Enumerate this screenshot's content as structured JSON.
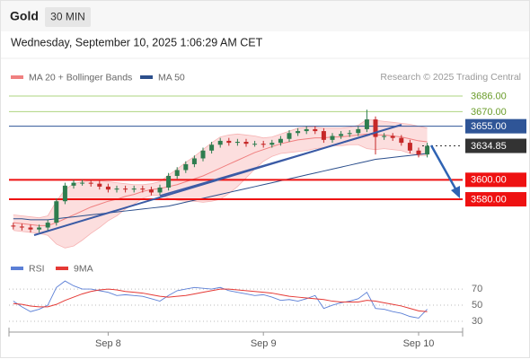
{
  "chart_data": {
    "type": "candlestick",
    "title": "Gold",
    "timeframe": "30 MIN",
    "subtitle": "Wednesday, September 10, 2025 1:06:29 AM CET",
    "source": "Research © 2025 Trading Central",
    "categories": [
      null,
      null,
      null,
      null,
      null,
      null,
      null,
      null,
      null,
      null,
      null,
      "Sep 8",
      null,
      null,
      null,
      null,
      null,
      null,
      null,
      null,
      null,
      null,
      null,
      null,
      null,
      null,
      null,
      null,
      null,
      "Sep 9",
      null,
      null,
      null,
      null,
      null,
      null,
      null,
      null,
      null,
      null,
      null,
      null,
      null,
      null,
      null,
      null,
      null,
      "Sep 10",
      null
    ],
    "open": [
      3553,
      3552,
      3551,
      3549,
      3551,
      3556,
      3578,
      3594,
      3597,
      3597,
      3596,
      3593,
      3590,
      3591,
      3590,
      3591,
      3590,
      3587,
      3592,
      3604,
      3610,
      3616,
      3622,
      3630,
      3636,
      3640,
      3638,
      3639,
      3637,
      3637,
      3636,
      3638,
      3642,
      3648,
      3650,
      3652,
      3650,
      3641,
      3645,
      3647,
      3648,
      3652,
      3662,
      3644,
      3645,
      3643,
      3638,
      3630,
      3626
    ],
    "high": [
      3556,
      3555,
      3554,
      3554,
      3559,
      3581,
      3597,
      3600,
      3600,
      3600,
      3599,
      3596,
      3594,
      3594,
      3594,
      3594,
      3593,
      3595,
      3607,
      3613,
      3619,
      3625,
      3633,
      3639,
      3643,
      3643,
      3642,
      3642,
      3640,
      3640,
      3641,
      3645,
      3651,
      3653,
      3655,
      3655,
      3653,
      3648,
      3650,
      3651,
      3655,
      3672,
      3665,
      3648,
      3648,
      3646,
      3641,
      3633,
      3638
    ],
    "low": [
      3549,
      3548,
      3546,
      3546,
      3548,
      3553,
      3575,
      3591,
      3594,
      3593,
      3590,
      3587,
      3587,
      3587,
      3587,
      3587,
      3584,
      3584,
      3589,
      3601,
      3607,
      3613,
      3619,
      3627,
      3633,
      3635,
      3635,
      3634,
      3634,
      3633,
      3633,
      3635,
      3639,
      3645,
      3647,
      3647,
      3638,
      3638,
      3642,
      3644,
      3645,
      3649,
      3626,
      3641,
      3640,
      3635,
      3627,
      3623,
      3623
    ],
    "close": [
      3552,
      3551,
      3549,
      3551,
      3556,
      3578,
      3594,
      3597,
      3597,
      3596,
      3593,
      3590,
      3591,
      3590,
      3591,
      3590,
      3587,
      3592,
      3604,
      3610,
      3616,
      3622,
      3630,
      3636,
      3640,
      3638,
      3639,
      3637,
      3637,
      3636,
      3638,
      3642,
      3648,
      3650,
      3652,
      3650,
      3641,
      3645,
      3647,
      3648,
      3652,
      3662,
      3644,
      3645,
      3643,
      3638,
      3630,
      3626,
      3634.85
    ],
    "up_color": "#2e7d4f",
    "down_color": "#c62828",
    "ylim": [
      3531.2,
      3715.5
    ],
    "series": [
      {
        "name": "MA 20 + Bollinger Bands",
        "color": "#f08080",
        "band_color": "#fbd3d3",
        "values": [
          3556,
          3555,
          3554,
          3553,
          3553,
          3556,
          3560,
          3564,
          3568,
          3572,
          3575,
          3578,
          3580,
          3583,
          3585,
          3588,
          3590,
          3591,
          3593,
          3595,
          3598,
          3601,
          3604,
          3608,
          3612,
          3616,
          3620,
          3624,
          3628,
          3631,
          3634,
          3637,
          3639,
          3641,
          3642,
          3643,
          3643,
          3644,
          3644,
          3645,
          3646,
          3647,
          3646,
          3646,
          3645,
          3644,
          3642,
          3640,
          3639
        ],
        "upper": [
          3564,
          3563,
          3562,
          3561,
          3563,
          3578,
          3590,
          3596,
          3598,
          3599,
          3599,
          3598,
          3597,
          3596,
          3595,
          3595,
          3596,
          3598,
          3605,
          3611,
          3618,
          3624,
          3631,
          3638,
          3644,
          3646,
          3647,
          3646,
          3645,
          3643,
          3644,
          3647,
          3650,
          3653,
          3654,
          3654,
          3653,
          3653,
          3653,
          3654,
          3656,
          3662,
          3661,
          3660,
          3659,
          3658,
          3657,
          3655,
          3653
        ],
        "lower": [
          3548,
          3547,
          3546,
          3545,
          3543,
          3534,
          3530,
          3532,
          3538,
          3545,
          3551,
          3558,
          3563,
          3570,
          3575,
          3581,
          3584,
          3584,
          3581,
          3579,
          3578,
          3578,
          3577,
          3578,
          3580,
          3586,
          3593,
          3602,
          3611,
          3619,
          3624,
          3627,
          3628,
          3629,
          3630,
          3632,
          3633,
          3635,
          3635,
          3636,
          3636,
          3632,
          3631,
          3632,
          3631,
          3630,
          3627,
          3625,
          3625
        ]
      },
      {
        "name": "MA 50",
        "color": "#2c4f8c",
        "values": [
          3560,
          3560,
          3559,
          3559,
          3559,
          3560,
          3561,
          3562,
          3563,
          3564,
          3565,
          3566,
          3567,
          3568,
          3569,
          3570,
          3571,
          3572,
          3573,
          3575,
          3577,
          3579,
          3581,
          3583,
          3585,
          3587,
          3589,
          3591,
          3593,
          3595,
          3597,
          3599,
          3601,
          3603,
          3605,
          3607,
          3609,
          3611,
          3613,
          3615,
          3617,
          3619,
          3621,
          3622,
          3623,
          3624,
          3625,
          3626,
          3627
        ]
      }
    ],
    "price_levels": [
      {
        "value": 3686,
        "label": "3686.00",
        "color": "#8bc34a",
        "boxed": false,
        "line": "solid"
      },
      {
        "value": 3670,
        "label": "3670.00",
        "color": "#8bc34a",
        "boxed": false,
        "line": "solid"
      },
      {
        "value": 3655,
        "label": "3655.00",
        "color": "#2f5597",
        "boxed": true,
        "line": "solid"
      },
      {
        "value": 3634.85,
        "label": "3634.85",
        "color": "#333333",
        "boxed": true,
        "line": "dotted"
      },
      {
        "value": 3600,
        "label": "3600.00",
        "color": "#ee1111",
        "boxed": true,
        "line": "thick"
      },
      {
        "value": 3580,
        "label": "3580.00",
        "color": "#ee1111",
        "boxed": true,
        "line": "thick"
      }
    ],
    "rsi": {
      "ylim": [
        15,
        89
      ],
      "yticks": [
        30,
        50,
        70
      ],
      "series": [
        {
          "name": "RSI",
          "color": "#5b7fd6",
          "values": [
            55,
            48,
            42,
            45,
            50,
            72,
            80,
            74,
            70,
            70,
            68,
            66,
            62,
            63,
            62,
            61,
            58,
            55,
            62,
            68,
            70,
            72,
            71,
            70,
            72,
            68,
            66,
            64,
            62,
            63,
            60,
            56,
            57,
            55,
            58,
            62,
            46,
            50,
            53,
            55,
            58,
            66,
            46,
            45,
            42,
            40,
            36,
            34,
            45
          ]
        },
        {
          "name": "9MA",
          "color": "#e53935",
          "values": [
            52,
            51,
            49,
            48,
            48,
            51,
            56,
            60,
            64,
            67,
            69,
            70,
            69,
            67,
            66,
            65,
            63,
            61,
            60,
            61,
            62,
            64,
            66,
            68,
            70,
            70,
            69,
            68,
            67,
            66,
            65,
            63,
            61,
            60,
            59,
            58,
            57,
            55,
            54,
            54,
            54,
            56,
            55,
            53,
            51,
            49,
            46,
            43,
            42
          ]
        }
      ]
    }
  }
}
